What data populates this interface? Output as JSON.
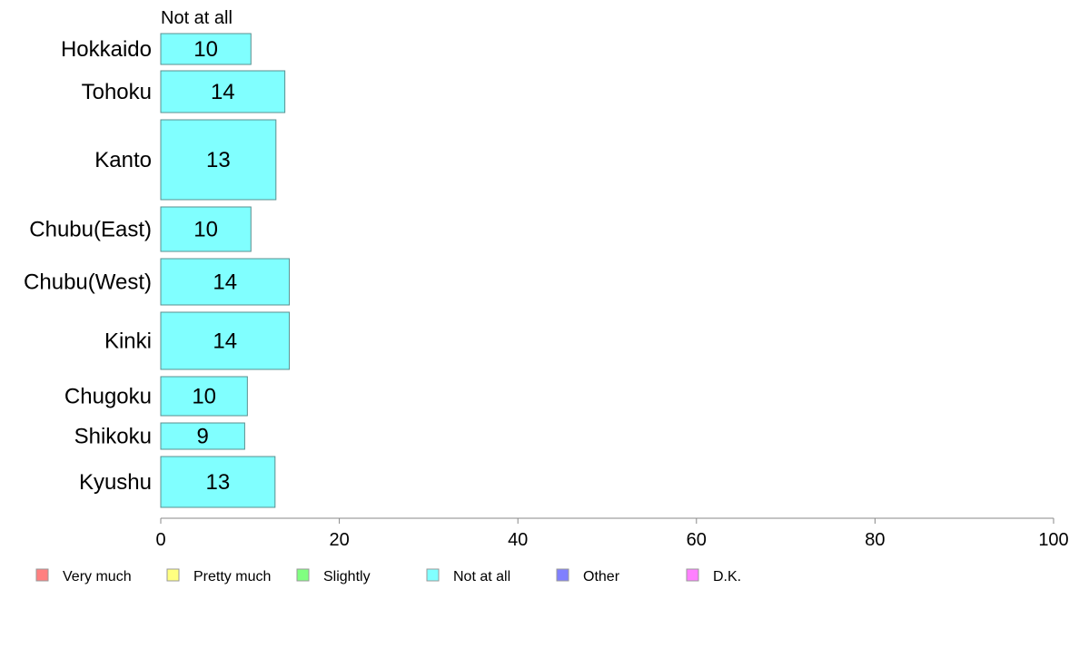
{
  "chart_data": {
    "type": "bar",
    "orientation": "horizontal",
    "stacked": true,
    "categories": [
      "Hokkaido",
      "Tohoku",
      "Kanto",
      "Chubu(East)",
      "Chubu(West)",
      "Kinki",
      "Chugoku",
      "Shikoku",
      "Kyushu"
    ],
    "series": [
      {
        "name": "Very much",
        "color": "#ff8080",
        "values": [
          null,
          null,
          null,
          null,
          null,
          null,
          null,
          null,
          null
        ]
      },
      {
        "name": "Pretty much",
        "color": "#ffff80",
        "values": [
          null,
          null,
          null,
          null,
          null,
          null,
          null,
          null,
          null
        ]
      },
      {
        "name": "Slightly",
        "color": "#80ff80",
        "values": [
          null,
          null,
          null,
          null,
          null,
          null,
          null,
          null,
          null
        ]
      },
      {
        "name": "Not at all",
        "color": "#80ffff",
        "values": [
          10.1,
          13.9,
          12.9,
          10.1,
          14.4,
          14.4,
          9.7,
          9.4,
          12.8
        ],
        "labels": [
          "10",
          "14",
          "13",
          "10",
          "14",
          "14",
          "10",
          "9",
          "13"
        ]
      },
      {
        "name": "Other",
        "color": "#8080ff",
        "values": [
          null,
          null,
          null,
          null,
          null,
          null,
          null,
          null,
          null
        ]
      },
      {
        "name": "D.K.",
        "color": "#ff80ff",
        "values": [
          null,
          null,
          null,
          null,
          null,
          null,
          null,
          null,
          null
        ]
      }
    ],
    "shown_series_title": "Not at all",
    "xlim": [
      0,
      100
    ],
    "xticks": [
      "0",
      "20",
      "40",
      "60",
      "80",
      "100"
    ],
    "grid": false,
    "legend_position": "bottom"
  }
}
